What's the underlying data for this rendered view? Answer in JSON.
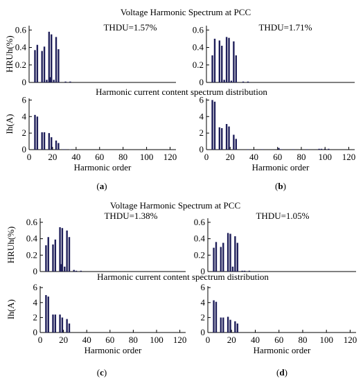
{
  "figure_titles": {
    "voltage_top": "Voltage Harmonic Spectrum at PCC",
    "current_top": "Harmonic current content spectrum distribution",
    "voltage_bottom": "Voltage Harmonic Spectrum at PCC",
    "current_bottom": "Harmonic current content spectrum distribution"
  },
  "panel_labels": [
    {
      "open": "(",
      "letter": "a",
      "close": ")"
    },
    {
      "open": "(",
      "letter": "b",
      "close": ")"
    },
    {
      "open": "(",
      "letter": "c",
      "close": ")"
    },
    {
      "open": "(",
      "letter": "d",
      "close": ")"
    }
  ],
  "bar_color": "#1f1f5a",
  "chart_data": [
    {
      "id": "a-voltage",
      "type": "bar",
      "title": "THDU=1.57%",
      "xlabel": "",
      "ylabel": "HRUh(%)",
      "xlim": [
        0,
        125
      ],
      "ylim": [
        0,
        0.65
      ],
      "xticks": [],
      "yticks": [
        0,
        0.2,
        0.4,
        0.6
      ],
      "ytick_labels": [
        "0",
        "0.2",
        "0.4",
        "0.6"
      ],
      "x": [
        5,
        7,
        11,
        13,
        17,
        19,
        23,
        25,
        15,
        18,
        21,
        31,
        35
      ],
      "values": [
        0.37,
        0.43,
        0.36,
        0.41,
        0.58,
        0.55,
        0.52,
        0.38,
        0.03,
        0.06,
        0.03,
        0.01,
        0.01
      ]
    },
    {
      "id": "b-voltage",
      "type": "bar",
      "title": "THDU=1.71%",
      "xlabel": "",
      "ylabel": "",
      "xlim": [
        0,
        125
      ],
      "ylim": [
        0,
        0.65
      ],
      "xticks": [],
      "yticks": [
        0,
        0.2,
        0.4,
        0.6
      ],
      "ytick_labels": [
        "0",
        "0.2",
        "0.4",
        "0.6"
      ],
      "x": [
        5,
        7,
        11,
        13,
        17,
        19,
        23,
        25,
        15,
        21,
        31,
        35
      ],
      "values": [
        0.31,
        0.5,
        0.48,
        0.42,
        0.52,
        0.51,
        0.47,
        0.31,
        0.03,
        0.02,
        0.01,
        0.01
      ]
    },
    {
      "id": "a-current",
      "type": "bar",
      "title": "",
      "xlabel": "Harmonic order",
      "ylabel": "Ih(A)",
      "xlim": [
        0,
        125
      ],
      "ylim": [
        0,
        6.2
      ],
      "xticks": [
        0,
        20,
        40,
        60,
        80,
        100,
        120
      ],
      "xtick_labels": [
        "0",
        "20",
        "40",
        "60",
        "80",
        "100",
        "120"
      ],
      "yticks": [
        0,
        2,
        4,
        6
      ],
      "ytick_labels": [
        "0",
        "2",
        "4",
        "6"
      ],
      "x": [
        5,
        7,
        11,
        13,
        17,
        19,
        23,
        25,
        29,
        31,
        35
      ],
      "values": [
        4.2,
        4.0,
        2.1,
        2.1,
        2.0,
        1.5,
        1.1,
        0.8,
        0.05,
        0.05,
        0.04
      ]
    },
    {
      "id": "b-current",
      "type": "bar",
      "title": "",
      "xlabel": "Harmonic order",
      "ylabel": "",
      "xlim": [
        0,
        125
      ],
      "ylim": [
        0,
        6.2
      ],
      "xticks": [
        0,
        20,
        40,
        60,
        80,
        100,
        120
      ],
      "xtick_labels": [
        "0",
        "20",
        "40",
        "60",
        "80",
        "100",
        "120"
      ],
      "yticks": [
        0,
        2,
        4,
        6
      ],
      "ytick_labels": [
        "0",
        "2",
        "4",
        "6"
      ],
      "x": [
        5,
        7,
        11,
        13,
        17,
        19,
        23,
        25,
        35,
        47,
        61,
        63,
        73,
        85,
        95,
        97,
        100,
        103
      ],
      "values": [
        6.0,
        5.8,
        2.7,
        2.6,
        3.1,
        2.8,
        1.8,
        1.3,
        0.05,
        0.05,
        0.2,
        0.05,
        0.05,
        0.05,
        0.1,
        0.1,
        0.1,
        0.1
      ]
    },
    {
      "id": "c-voltage",
      "type": "bar",
      "title": "THDU=1.38%",
      "xlabel": "",
      "ylabel": "HRUh(%)",
      "xlim": [
        0,
        125
      ],
      "ylim": [
        0,
        0.65
      ],
      "xticks": [],
      "yticks": [
        0,
        0.2,
        0.4,
        0.6
      ],
      "ytick_labels": [
        "0",
        "0.2",
        "0.4",
        "0.6"
      ],
      "x": [
        5,
        7,
        11,
        13,
        17,
        19,
        23,
        25,
        18,
        21,
        29,
        31,
        35
      ],
      "values": [
        0.32,
        0.42,
        0.33,
        0.39,
        0.54,
        0.53,
        0.5,
        0.42,
        0.09,
        0.06,
        0.02,
        0.01,
        0.01
      ]
    },
    {
      "id": "d-voltage",
      "type": "bar",
      "title": "THDU=1.05%",
      "xlabel": "",
      "ylabel": "",
      "xlim": [
        0,
        125
      ],
      "ylim": [
        0,
        0.65
      ],
      "xticks": [],
      "yticks": [
        0,
        0.2,
        0.4,
        0.6
      ],
      "ytick_labels": [
        "0",
        "0.2",
        "0.4",
        "0.6"
      ],
      "x": [
        5,
        7,
        11,
        13,
        17,
        19,
        23,
        25,
        21,
        29,
        31,
        35
      ],
      "values": [
        0.29,
        0.36,
        0.3,
        0.35,
        0.47,
        0.46,
        0.43,
        0.35,
        0.06,
        0.01,
        0.01,
        0.01
      ]
    },
    {
      "id": "c-current",
      "type": "bar",
      "title": "",
      "xlabel": "Harmonic order",
      "ylabel": "Ih(A)",
      "xlim": [
        0,
        125
      ],
      "ylim": [
        0,
        6.2
      ],
      "xticks": [
        0,
        20,
        40,
        60,
        80,
        100,
        120
      ],
      "xtick_labels": [
        "0",
        "20",
        "40",
        "60",
        "80",
        "100",
        "120"
      ],
      "yticks": [
        0,
        2,
        4,
        6
      ],
      "ytick_labels": [
        "0",
        "2",
        "4",
        "6"
      ],
      "x": [
        5,
        7,
        11,
        13,
        17,
        19,
        23,
        25
      ],
      "values": [
        5.0,
        4.8,
        2.4,
        2.4,
        2.4,
        2.0,
        1.8,
        1.2
      ]
    },
    {
      "id": "d-current",
      "type": "bar",
      "title": "",
      "xlabel": "Harmonic order",
      "ylabel": "",
      "xlim": [
        0,
        125
      ],
      "ylim": [
        0,
        6.2
      ],
      "xticks": [
        0,
        20,
        40,
        60,
        80,
        100,
        120
      ],
      "xtick_labels": [
        "0",
        "20",
        "40",
        "60",
        "80",
        "100",
        "120"
      ],
      "yticks": [
        0,
        2,
        4,
        6
      ],
      "ytick_labels": [
        "0",
        "2",
        "4",
        "6"
      ],
      "x": [
        5,
        7,
        11,
        13,
        17,
        19,
        23,
        25
      ],
      "values": [
        4.3,
        4.1,
        2.0,
        2.0,
        2.1,
        1.7,
        1.5,
        1.2
      ]
    }
  ]
}
